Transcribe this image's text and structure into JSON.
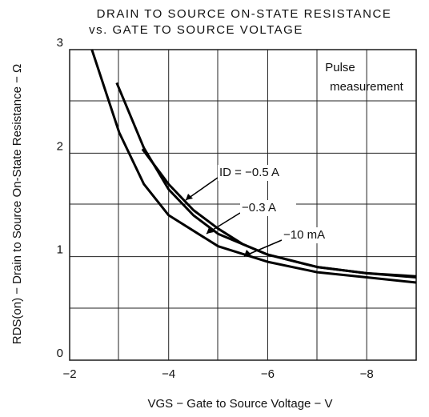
{
  "chart_data": {
    "type": "line",
    "title": "DRAIN TO SOURCE ON-STATE RESISTANCE",
    "subtitle": "vs. GATE TO SOURCE VOLTAGE",
    "x_label": "VGS − Gate to Source Voltage − V",
    "y_label": "RDS(on) − Drain to Source On-State Resistance − Ω",
    "annotation": "Pulse measurement",
    "xlim": [
      -2,
      -9
    ],
    "xticks": [
      {
        "value": -2,
        "label": "−2"
      },
      {
        "value": -4,
        "label": "−4"
      },
      {
        "value": -6,
        "label": "−6"
      },
      {
        "value": -8,
        "label": "−8"
      }
    ],
    "ylim": [
      0,
      3
    ],
    "yticks": [
      0,
      1,
      2,
      3
    ],
    "grid": true,
    "series": [
      {
        "name": "ID = −0.5 A",
        "color": "#000000",
        "x": [
          -3.47,
          -4,
          -4.5,
          -5,
          -5.5,
          -6,
          -7,
          -8,
          -9
        ],
        "values": [
          2.04,
          1.7,
          1.45,
          1.27,
          1.12,
          1.02,
          0.9,
          0.84,
          0.81
        ]
      },
      {
        "name": "−0.3 A",
        "color": "#000000",
        "x": [
          -2.95,
          -3.5,
          -4,
          -4.5,
          -5,
          -6,
          -7,
          -8,
          -9
        ],
        "values": [
          2.68,
          2.05,
          1.65,
          1.4,
          1.22,
          1.02,
          0.9,
          0.84,
          0.8
        ]
      },
      {
        "name": "−10 mA",
        "color": "#000000",
        "x": [
          -2.45,
          -3,
          -3.5,
          -4,
          -5,
          -6,
          -7,
          -8,
          -9
        ],
        "values": [
          3,
          2.2,
          1.7,
          1.4,
          1.1,
          0.95,
          0.85,
          0.8,
          0.75
        ]
      }
    ]
  }
}
